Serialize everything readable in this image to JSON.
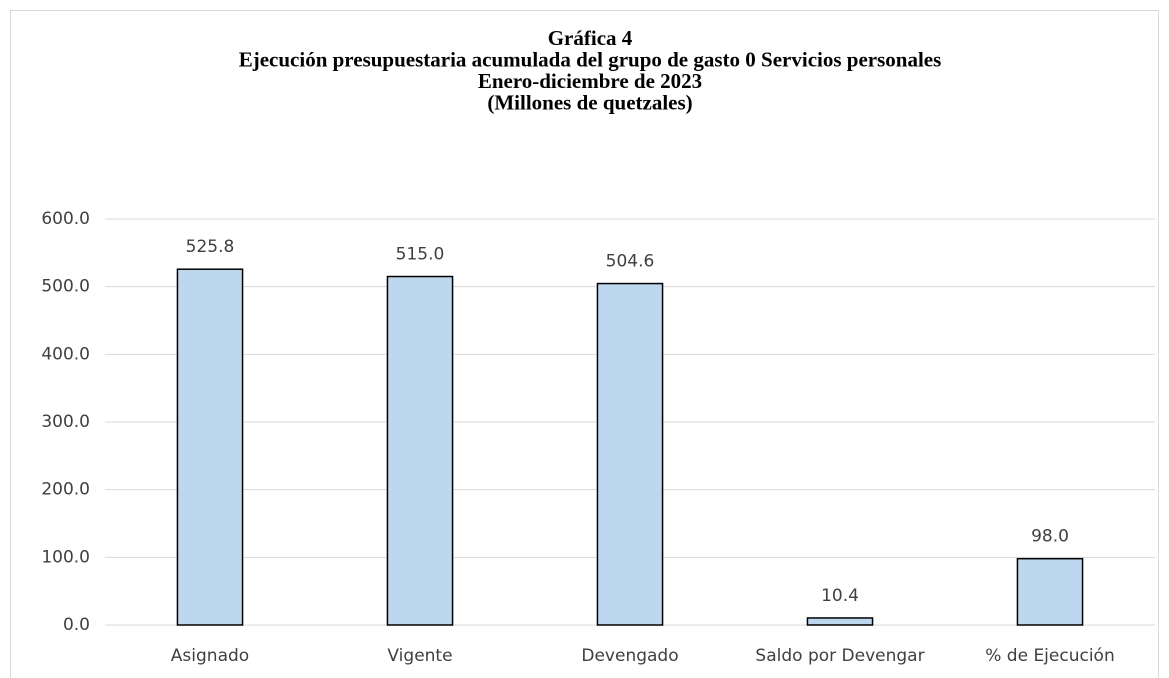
{
  "chart_data": {
    "type": "bar",
    "title": [
      "Gráfica 4",
      "Ejecución presupuestaria acumulada del grupo de gasto 0 Servicios personales",
      "Enero-diciembre de 2023",
      "(Millones de quetzales)"
    ],
    "categories": [
      "Asignado",
      "Vigente",
      "Devengado",
      "Saldo por Devengar",
      "% de Ejecución"
    ],
    "values": [
      525.8,
      515.0,
      504.6,
      10.4,
      98.0
    ],
    "value_labels": [
      "525.8",
      "515.0",
      "504.6",
      "10.4",
      "98.0"
    ],
    "color": "#bdd7ee",
    "ylim": [
      0,
      600
    ],
    "yticks": [
      {
        "value": 0,
        "label": "0.0"
      },
      {
        "value": 100,
        "label": "100.0"
      },
      {
        "value": 200,
        "label": "200.0"
      },
      {
        "value": 300,
        "label": "300.0"
      },
      {
        "value": 400,
        "label": "400.0"
      },
      {
        "value": 500,
        "label": "500.0"
      },
      {
        "value": 600,
        "label": "600.0"
      }
    ],
    "grid": true
  }
}
